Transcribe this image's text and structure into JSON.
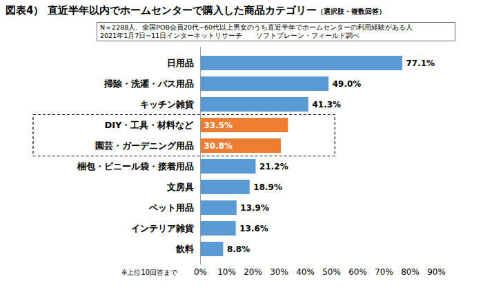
{
  "chart_data": {
    "type": "bar",
    "orientation": "horizontal",
    "title": "図表4） 直近半年以内でホームセンターで購入した商品カテゴリー",
    "annotations": [
      "（選択肢・複数回答）",
      "N＝2288人、全国POB会員20代~60代以上男女のうち直近半年でホームセンターの利用経験がある人",
      "2021年1月7日~11日インターネットリサーチ　　ソフトブレーン・フィールド調べ",
      "※上位10回答まで"
    ],
    "categories": [
      "日用品",
      "掃除・洗濯・バス用品",
      "キッチン雑貨",
      "DIY・工具・材料など",
      "園芸・ガーデニング用品",
      "梱包・ビニール袋・接着用品",
      "文房具",
      "ペット用品",
      "インテリア雑貨",
      "飲料"
    ],
    "values": [
      77.1,
      49.0,
      41.3,
      33.5,
      30.8,
      21.2,
      18.9,
      13.9,
      13.6,
      8.8
    ],
    "value_labels": [
      "77.1%",
      "49.0%",
      "41.3%",
      "33.5%",
      "30.8%",
      "21.2%",
      "18.9%",
      "13.9%",
      "13.6%",
      "8.8%"
    ],
    "colors": [
      "#5b9bd5",
      "#5b9bd5",
      "#5b9bd5",
      "#ed7d31",
      "#ed7d31",
      "#5b9bd5",
      "#5b9bd5",
      "#5b9bd5",
      "#5b9bd5",
      "#5b9bd5"
    ],
    "xlim": [
      0,
      90
    ],
    "xticks": [
      {
        "value": 0,
        "label": "0%"
      },
      {
        "value": 10,
        "label": "10%"
      },
      {
        "value": 20,
        "label": "20%"
      },
      {
        "value": 30,
        "label": "30%"
      },
      {
        "value": 40,
        "label": "40%"
      },
      {
        "value": 50,
        "label": "50%"
      },
      {
        "value": 60,
        "label": "60%"
      },
      {
        "value": 70,
        "label": "70%"
      },
      {
        "value": 80,
        "label": "80%"
      },
      {
        "value": 90,
        "label": "90%"
      }
    ],
    "grid": false,
    "data_labels": true
  }
}
